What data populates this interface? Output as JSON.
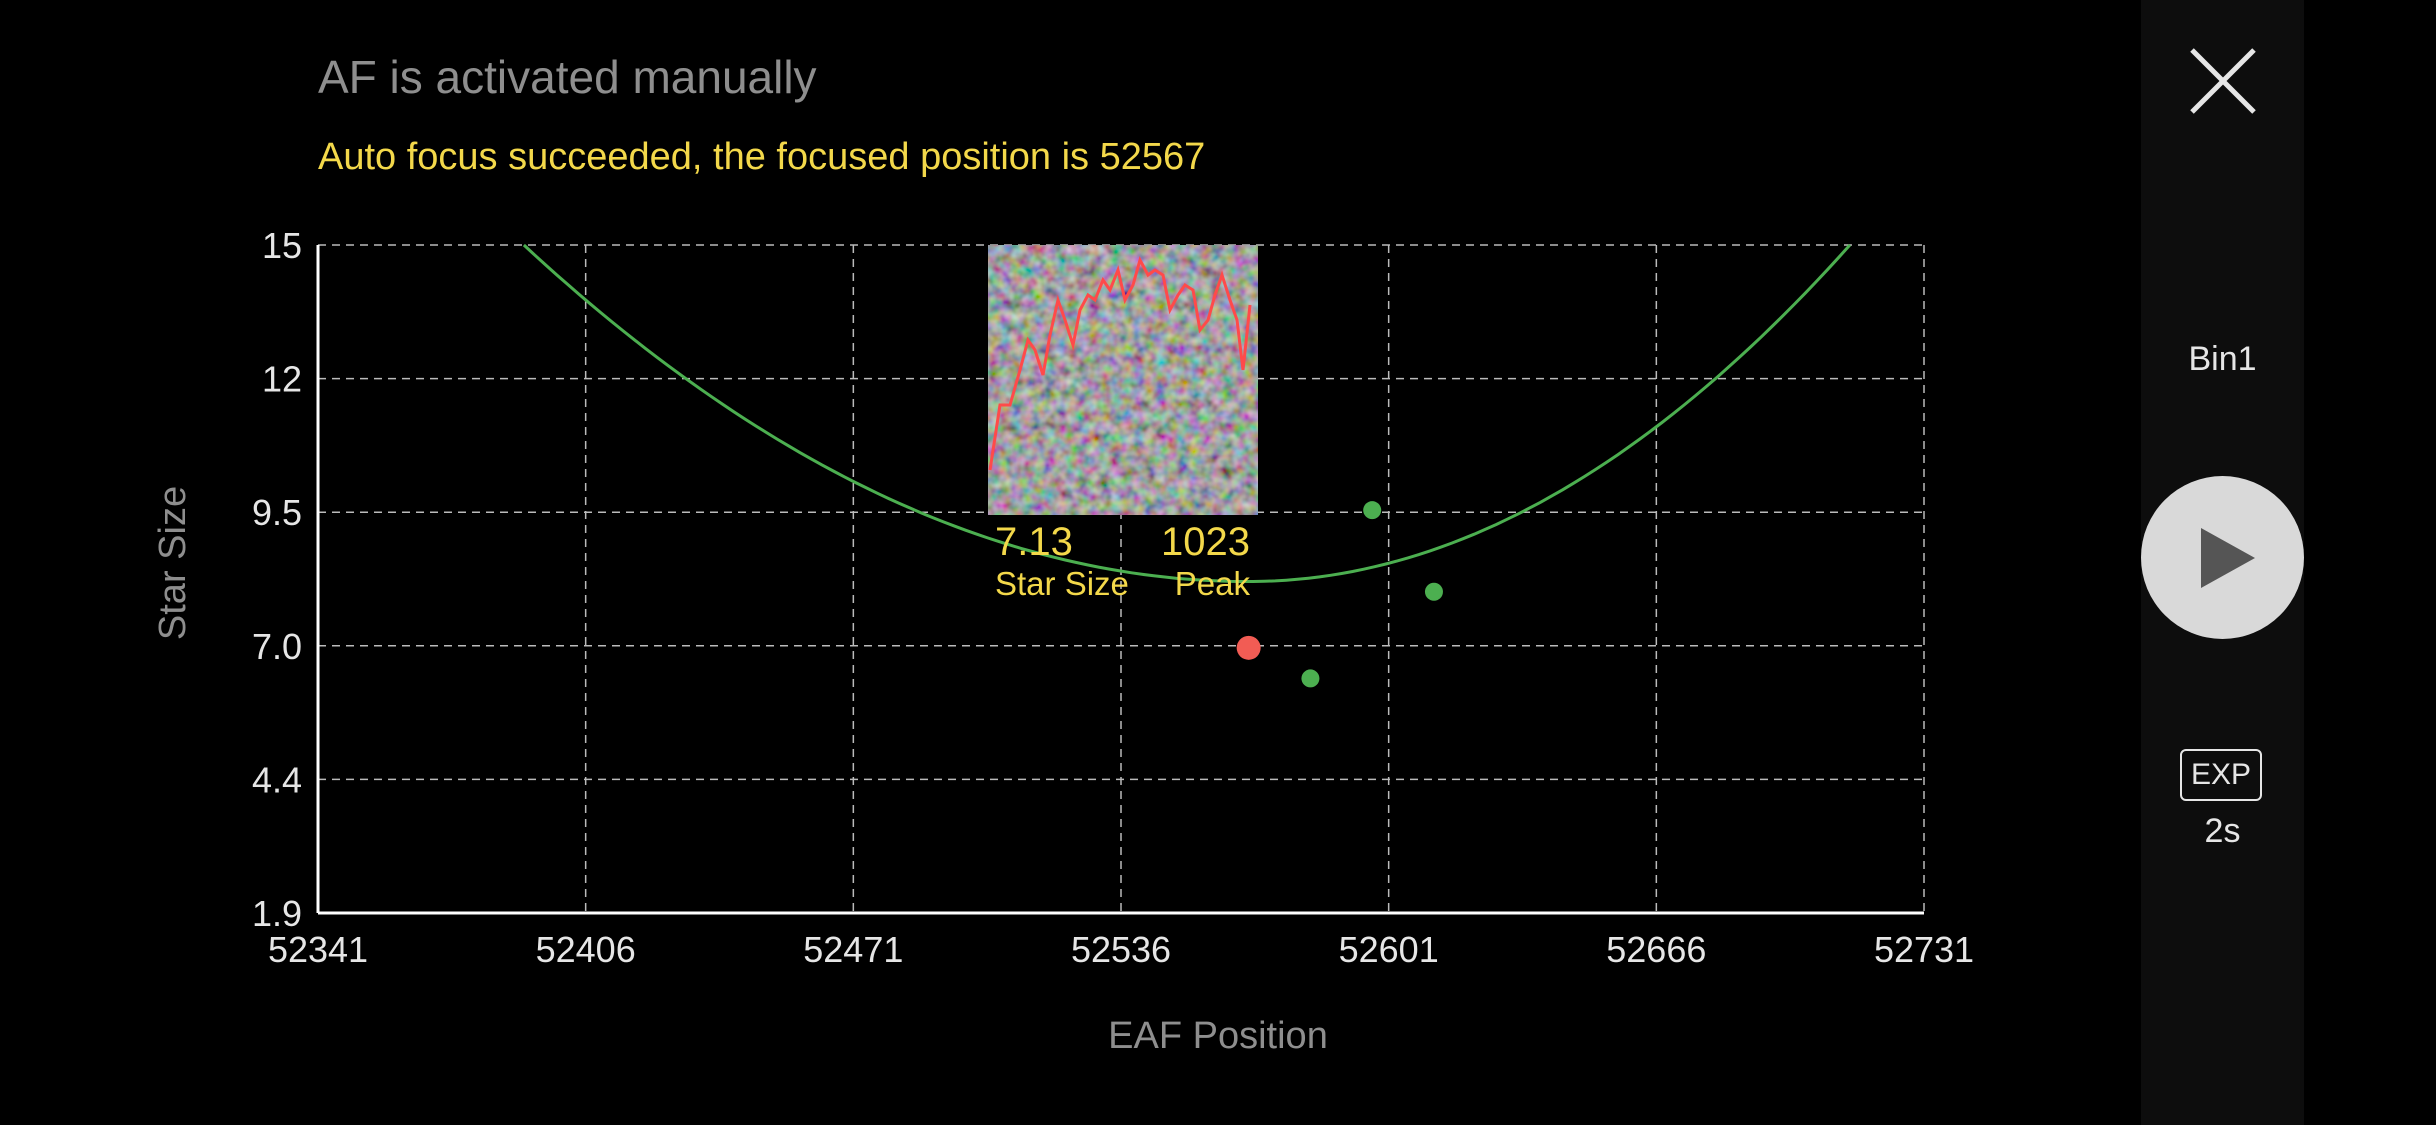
{
  "header": {
    "title": "AF is activated manually",
    "status": "Auto focus succeeded, the focused position is 52567"
  },
  "side_panel": {
    "bin": "Bin1",
    "exp_badge": "EXP",
    "exp_value": "2s"
  },
  "star_preview": {
    "star_size_value": "7.13",
    "peak_value": "1023",
    "star_size_label": "Star Size",
    "peak_label": "Peak"
  },
  "colors": {
    "curve": "#4caf50",
    "point": "#4caf50",
    "current_point": "#f25c54",
    "status_text": "#f3d84a",
    "profile_line": "#ff4a4a"
  },
  "chart_data": {
    "type": "scatter",
    "xlabel": "EAF Position",
    "ylabel": "Star Size",
    "xlim": [
      52341,
      52731
    ],
    "ylim": [
      1.9,
      15
    ],
    "x_ticks": [
      "52341",
      "52406",
      "52471",
      "52536",
      "52601",
      "52666",
      "52731"
    ],
    "y_ticks": [
      "15",
      "12",
      "9.5",
      "7.0",
      "4.4",
      "1.9"
    ],
    "grid": true,
    "fit_curve": {
      "vertex": [
        52567,
        8.4
      ],
      "passes_through": [
        [
          52391,
          15
        ],
        [
          52713,
          15
        ]
      ]
    },
    "series": [
      {
        "values": [
          [
            52582,
            6.5
          ],
          [
            52597,
            9.8
          ],
          [
            52612,
            8.2
          ]
        ]
      }
    ],
    "current_point": [
      52567,
      7.1
    ]
  }
}
